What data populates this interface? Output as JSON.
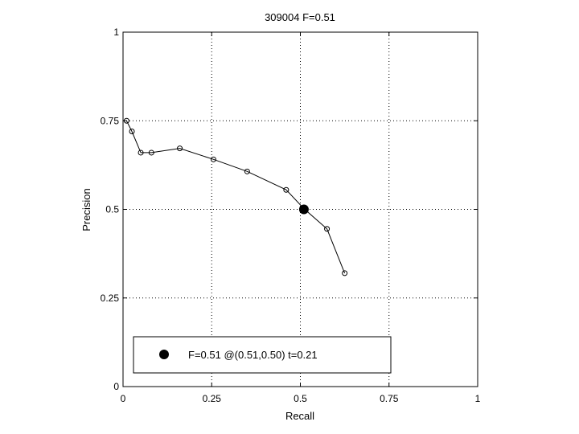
{
  "chart_data": {
    "type": "line",
    "title": "309004 F=0.51",
    "xlabel": "Recall",
    "ylabel": "Precision",
    "xlim": [
      0,
      1
    ],
    "ylim": [
      0,
      1
    ],
    "xticks": [
      0,
      0.25,
      0.5,
      0.75,
      1
    ],
    "yticks": [
      0,
      0.25,
      0.5,
      0.75,
      1
    ],
    "xtick_labels": [
      "0",
      "0.25",
      "0.5",
      "0.75",
      "1"
    ],
    "ytick_labels": [
      "0",
      "0.25",
      "0.5",
      "0.75",
      "1"
    ],
    "grid": true,
    "series": [
      {
        "x": [
          0.01,
          0.025,
          0.05,
          0.08,
          0.16,
          0.255,
          0.35,
          0.46,
          0.51,
          0.575,
          0.625
        ],
        "y": [
          0.75,
          0.72,
          0.66,
          0.66,
          0.672,
          0.641,
          0.607,
          0.555,
          0.502,
          0.445,
          0.32
        ]
      }
    ],
    "best_point": {
      "x": 0.51,
      "y": 0.5
    },
    "legend": {
      "position": "bottom-left",
      "text": "F=0.51 @(0.51,0.50) t=0.21"
    }
  }
}
